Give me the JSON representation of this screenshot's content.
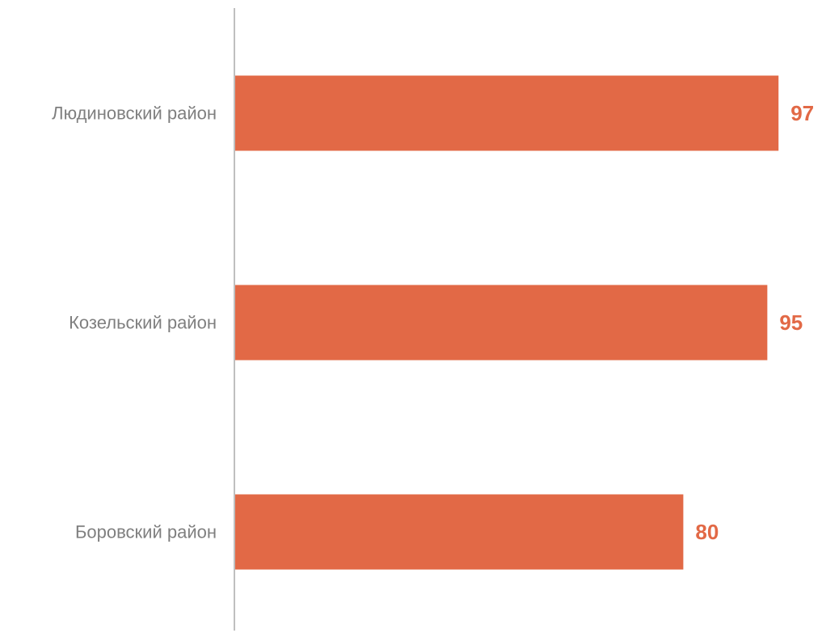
{
  "chart_data": {
    "type": "bar",
    "orientation": "horizontal",
    "categories": [
      "Людиновский район",
      "Козельский район",
      "Боровский район"
    ],
    "values": [
      97,
      95,
      80
    ],
    "title": "",
    "xlabel": "",
    "ylabel": "",
    "xlim": [
      0,
      100
    ],
    "grid": false,
    "legend": "none",
    "data_labels": true,
    "colors": {
      "bar": "#E26946",
      "value_label": "#E26946",
      "category_label": "#7F7F7F",
      "axis": "#BFBFBF"
    }
  }
}
